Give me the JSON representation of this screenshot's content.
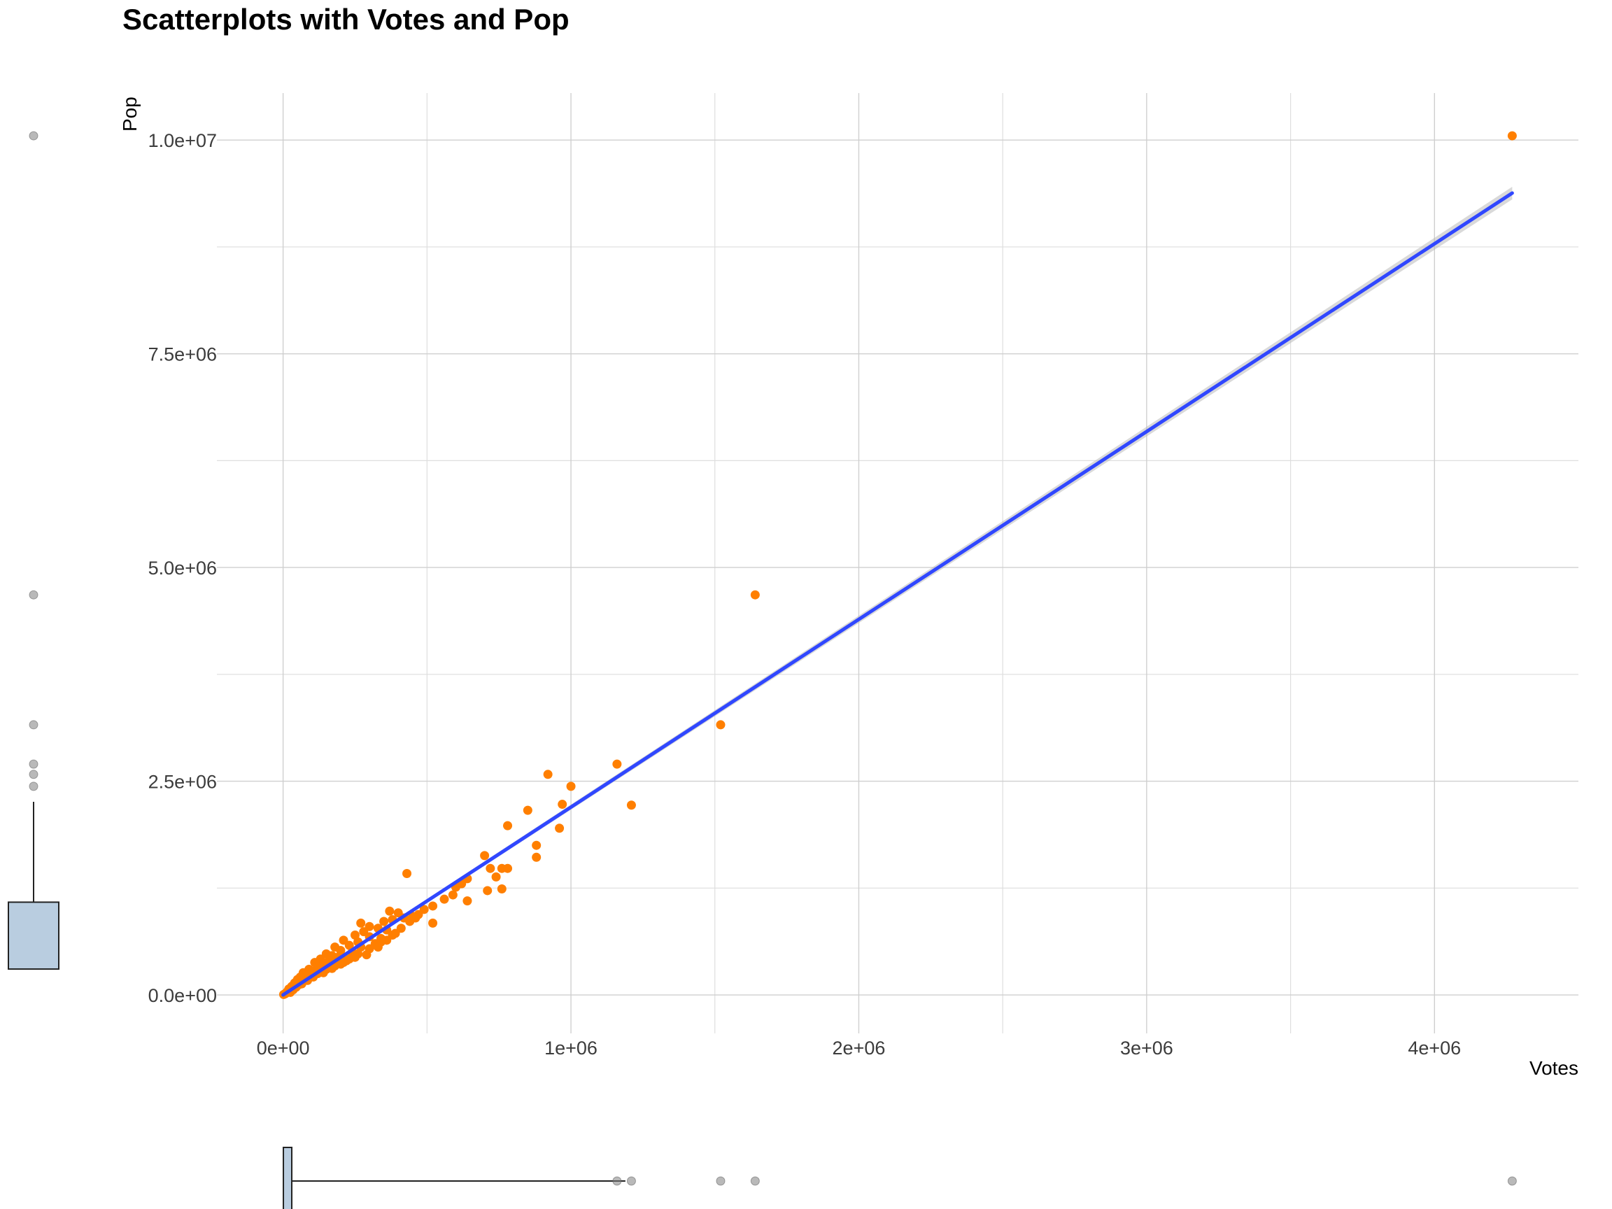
{
  "chart_data": {
    "type": "scatter",
    "title": "Scatterplots with Votes and Pop",
    "xlabel": "Votes",
    "ylabel": "Pop",
    "xlim": [
      -230000,
      4500000
    ],
    "ylim": [
      -450000,
      10550000
    ],
    "x_ticks": [
      {
        "value": 0,
        "label": "0e+00"
      },
      {
        "value": 1000000,
        "label": "1e+06"
      },
      {
        "value": 2000000,
        "label": "2e+06"
      },
      {
        "value": 3000000,
        "label": "3e+06"
      },
      {
        "value": 4000000,
        "label": "4e+06"
      }
    ],
    "y_ticks": [
      {
        "value": 0,
        "label": "0.0e+00"
      },
      {
        "value": 2500000,
        "label": "2.5e+06"
      },
      {
        "value": 5000000,
        "label": "5.0e+06"
      },
      {
        "value": 7500000,
        "label": "7.5e+06"
      },
      {
        "value": 10000000,
        "label": "1.0e+07"
      }
    ],
    "x_minor": [
      500000,
      1500000,
      2500000,
      3500000
    ],
    "y_minor": [
      1250000,
      3750000,
      6250000,
      8750000
    ],
    "grid": true,
    "point_color": "#ff7f00",
    "fit_line": {
      "x": [
        0,
        4270000
      ],
      "y": [
        0,
        9380000
      ],
      "color": "#3047ff",
      "band_color": "#b3b3b3"
    },
    "marginal_boxplots": true,
    "box_outlier_color": "#7f7f7f",
    "box_fill": "#b9cde0",
    "series": [
      {
        "values": [
          [
            4270000,
            10050000
          ],
          [
            1640000,
            4680000
          ],
          [
            1520000,
            3160000
          ],
          [
            1160000,
            2700000
          ],
          [
            920000,
            2580000
          ],
          [
            1000000,
            2440000
          ],
          [
            970000,
            2230000
          ],
          [
            1210000,
            2220000
          ],
          [
            850000,
            2160000
          ],
          [
            780000,
            1980000
          ],
          [
            960000,
            1950000
          ],
          [
            880000,
            1750000
          ],
          [
            880000,
            1610000
          ],
          [
            430000,
            1420000
          ],
          [
            700000,
            1630000
          ],
          [
            720000,
            1480000
          ],
          [
            760000,
            1480000
          ],
          [
            780000,
            1480000
          ],
          [
            740000,
            1380000
          ],
          [
            640000,
            1360000
          ],
          [
            620000,
            1300000
          ],
          [
            600000,
            1260000
          ],
          [
            710000,
            1220000
          ],
          [
            760000,
            1240000
          ],
          [
            590000,
            1170000
          ],
          [
            560000,
            1120000
          ],
          [
            640000,
            1100000
          ],
          [
            520000,
            1040000
          ],
          [
            490000,
            1000000
          ],
          [
            370000,
            980000
          ],
          [
            400000,
            960000
          ],
          [
            470000,
            940000
          ],
          [
            450000,
            920000
          ],
          [
            420000,
            900000
          ],
          [
            380000,
            880000
          ],
          [
            350000,
            860000
          ],
          [
            520000,
            840000
          ],
          [
            270000,
            840000
          ],
          [
            300000,
            800000
          ],
          [
            330000,
            780000
          ],
          [
            360000,
            760000
          ],
          [
            280000,
            740000
          ],
          [
            390000,
            720000
          ],
          [
            250000,
            700000
          ],
          [
            300000,
            680000
          ],
          [
            340000,
            660000
          ],
          [
            210000,
            640000
          ],
          [
            260000,
            620000
          ],
          [
            320000,
            600000
          ],
          [
            230000,
            580000
          ],
          [
            270000,
            560000
          ],
          [
            180000,
            560000
          ],
          [
            200000,
            520000
          ],
          [
            240000,
            500000
          ],
          [
            150000,
            480000
          ],
          [
            290000,
            470000
          ],
          [
            170000,
            460000
          ],
          [
            190000,
            440000
          ],
          [
            130000,
            420000
          ],
          [
            220000,
            400000
          ],
          [
            160000,
            400000
          ],
          [
            110000,
            380000
          ],
          [
            140000,
            360000
          ],
          [
            180000,
            340000
          ],
          [
            120000,
            320000
          ],
          [
            90000,
            300000
          ],
          [
            150000,
            300000
          ],
          [
            100000,
            280000
          ],
          [
            70000,
            260000
          ],
          [
            120000,
            250000
          ],
          [
            80000,
            230000
          ],
          [
            60000,
            210000
          ],
          [
            90000,
            200000
          ],
          [
            50000,
            180000
          ],
          [
            70000,
            160000
          ],
          [
            40000,
            140000
          ],
          [
            55000,
            120000
          ],
          [
            30000,
            100000
          ],
          [
            45000,
            90000
          ],
          [
            20000,
            70000
          ],
          [
            35000,
            60000
          ],
          [
            15000,
            40000
          ],
          [
            25000,
            30000
          ],
          [
            10000,
            20000
          ],
          [
            5000,
            10000
          ],
          [
            2000,
            5000
          ],
          [
            8000,
            15000
          ],
          [
            12000,
            28000
          ],
          [
            200000,
            360000
          ],
          [
            230000,
            420000
          ],
          [
            260000,
            480000
          ],
          [
            300000,
            540000
          ],
          [
            340000,
            620000
          ],
          [
            380000,
            700000
          ],
          [
            410000,
            780000
          ],
          [
            440000,
            860000
          ],
          [
            460000,
            900000
          ],
          [
            330000,
            560000
          ],
          [
            360000,
            640000
          ],
          [
            250000,
            440000
          ],
          [
            210000,
            380000
          ],
          [
            170000,
            310000
          ],
          [
            140000,
            260000
          ],
          [
            105000,
            210000
          ],
          [
            85000,
            170000
          ],
          [
            65000,
            130000
          ]
        ]
      }
    ]
  }
}
